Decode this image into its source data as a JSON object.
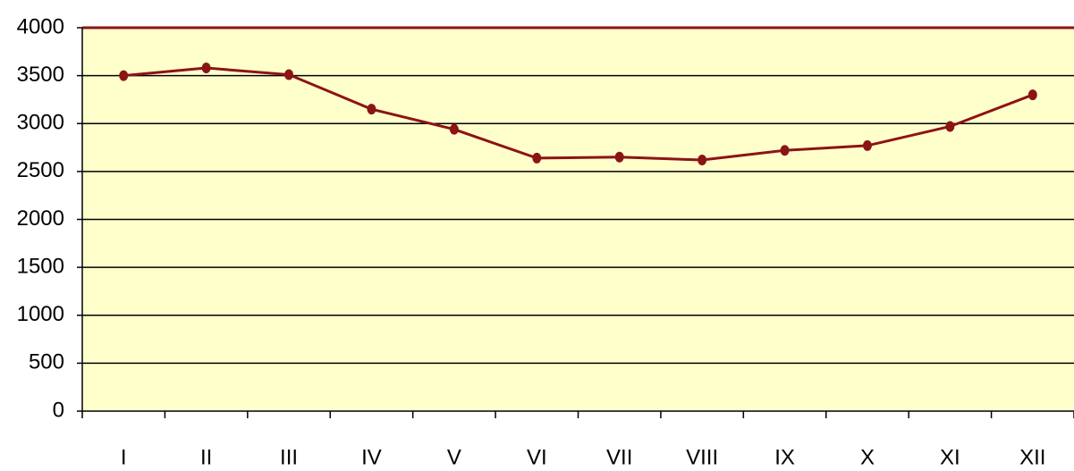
{
  "chart_data": {
    "type": "line",
    "categories": [
      "I",
      "II",
      "III",
      "IV",
      "V",
      "VI",
      "VII",
      "VIII",
      "IX",
      "X",
      "XI",
      "XII"
    ],
    "series": [
      {
        "color": "#8b1414",
        "values": [
          3500,
          3580,
          3510,
          3150,
          2940,
          2640,
          2650,
          2620,
          2720,
          2770,
          2970,
          3300
        ]
      }
    ],
    "ylim": [
      0,
      4000
    ],
    "yticks": [
      0,
      500,
      1000,
      1500,
      2000,
      2500,
      3000,
      3500,
      4000
    ],
    "grid": true
  }
}
